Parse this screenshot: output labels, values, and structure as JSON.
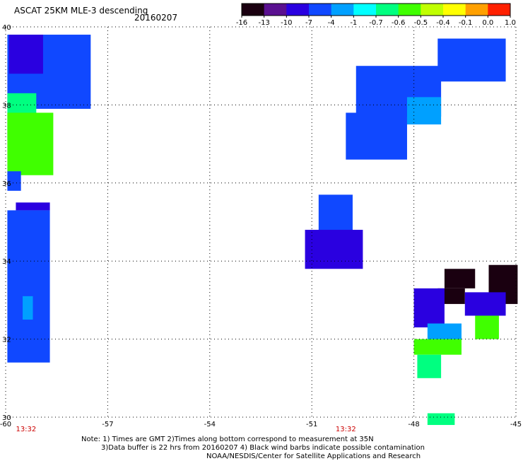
{
  "header": {
    "title": "ASCAT 25KM MLE-3 descending",
    "date": "20160207"
  },
  "colorbar": {
    "labels": [
      "-16",
      "-13",
      "-10",
      "-7",
      "-4",
      "-1",
      "-0.7",
      "-0.6",
      "-0.5",
      "-0.4",
      "-0.1",
      "0.0",
      "1.0"
    ],
    "colors": [
      "#1a0010",
      "#5a1090",
      "#2a00e0",
      "#1048ff",
      "#00a0ff",
      "#00ffff",
      "#00ff80",
      "#40ff00",
      "#c0ff00",
      "#ffff00",
      "#ffa000",
      "#ff2000"
    ]
  },
  "chart_data": {
    "type": "heatmap",
    "title": "ASCAT 25KM MLE-3 descending",
    "xlabel": "",
    "ylabel": "",
    "xlim": [
      -60,
      -45
    ],
    "ylim": [
      30,
      40
    ],
    "x_ticks": [
      "-60",
      "-57",
      "-54",
      "-51",
      "-48",
      "-45"
    ],
    "x_tick_values": [
      -60,
      -57,
      -54,
      -51,
      -48,
      -45
    ],
    "y_ticks": [
      "40",
      "38",
      "36",
      "34",
      "32",
      "30"
    ],
    "y_tick_values": [
      40,
      38,
      36,
      34,
      32,
      30
    ],
    "grid": true,
    "time_labels": [
      {
        "lon": -59.4,
        "text": "13:32"
      },
      {
        "lon": -50.0,
        "text": "13:32"
      }
    ],
    "patches": [
      {
        "lon": [
          -59.95,
          -57.5
        ],
        "lat": [
          37.9,
          39.8
        ],
        "value": -4
      },
      {
        "lon": [
          -59.9,
          -58.9
        ],
        "lat": [
          38.8,
          39.8
        ],
        "value": -7
      },
      {
        "lon": [
          -59.95,
          -59.1
        ],
        "lat": [
          37.1,
          38.3
        ],
        "value": -0.6
      },
      {
        "lon": [
          -59.95,
          -58.6
        ],
        "lat": [
          36.2,
          37.8
        ],
        "value": -0.5
      },
      {
        "lon": [
          -59.95,
          -59.55
        ],
        "lat": [
          35.8,
          36.3
        ],
        "value": -4
      },
      {
        "lon": [
          -59.7,
          -58.7
        ],
        "lat": [
          35.3,
          35.5
        ],
        "value": -7
      },
      {
        "lon": [
          -59.95,
          -58.7
        ],
        "lat": [
          31.4,
          35.3
        ],
        "value": -4
      },
      {
        "lon": [
          -59.5,
          -59.2
        ],
        "lat": [
          32.5,
          33.1
        ],
        "value": -1
      },
      {
        "lon": [
          -50.8,
          -49.8
        ],
        "lat": [
          34.6,
          35.7
        ],
        "value": -4
      },
      {
        "lon": [
          -51.2,
          -49.5
        ],
        "lat": [
          33.8,
          34.8
        ],
        "value": -7
      },
      {
        "lon": [
          -49.7,
          -47.2
        ],
        "lat": [
          37.7,
          39.0
        ],
        "value": -4
      },
      {
        "lon": [
          -47.3,
          -45.3
        ],
        "lat": [
          38.6,
          39.7
        ],
        "value": -4
      },
      {
        "lon": [
          -50.0,
          -48.2
        ],
        "lat": [
          36.6,
          37.8
        ],
        "value": -4
      },
      {
        "lon": [
          -48.2,
          -47.2
        ],
        "lat": [
          37.5,
          38.2
        ],
        "value": -1
      },
      {
        "lon": [
          -47.1,
          -46.2
        ],
        "lat": [
          33.3,
          33.8
        ],
        "value": -16
      },
      {
        "lon": [
          -45.8,
          -44.95
        ],
        "lat": [
          32.9,
          33.9
        ],
        "value": -13
      },
      {
        "lon": [
          -47.3,
          -46.5
        ],
        "lat": [
          32.9,
          33.3
        ],
        "value": -13
      },
      {
        "lon": [
          -48.0,
          -47.1
        ],
        "lat": [
          32.3,
          33.3
        ],
        "value": -7
      },
      {
        "lon": [
          -46.5,
          -45.3
        ],
        "lat": [
          32.6,
          33.2
        ],
        "value": -7
      },
      {
        "lon": [
          -47.6,
          -46.6
        ],
        "lat": [
          31.8,
          32.4
        ],
        "value": -1
      },
      {
        "lon": [
          -48.0,
          -46.6
        ],
        "lat": [
          31.6,
          32.0
        ],
        "value": -0.5
      },
      {
        "lon": [
          -47.9,
          -47.2
        ],
        "lat": [
          31.0,
          31.6
        ],
        "value": -0.6
      },
      {
        "lon": [
          -46.2,
          -45.5
        ],
        "lat": [
          32.0,
          32.6
        ],
        "value": -0.5
      },
      {
        "lon": [
          -47.6,
          -46.8
        ],
        "lat": [
          29.8,
          30.1
        ],
        "value": -0.6
      }
    ]
  },
  "notes": [
    "Note: 1) Times are GMT 2)Times along bottom correspond to measurement at 35N",
    "3)Data buffer is 22 hrs from 20160207 4) Black wind barbs indicate possible contamination",
    "NOAA/NESDIS/Center for Satellite Applications and Research"
  ]
}
